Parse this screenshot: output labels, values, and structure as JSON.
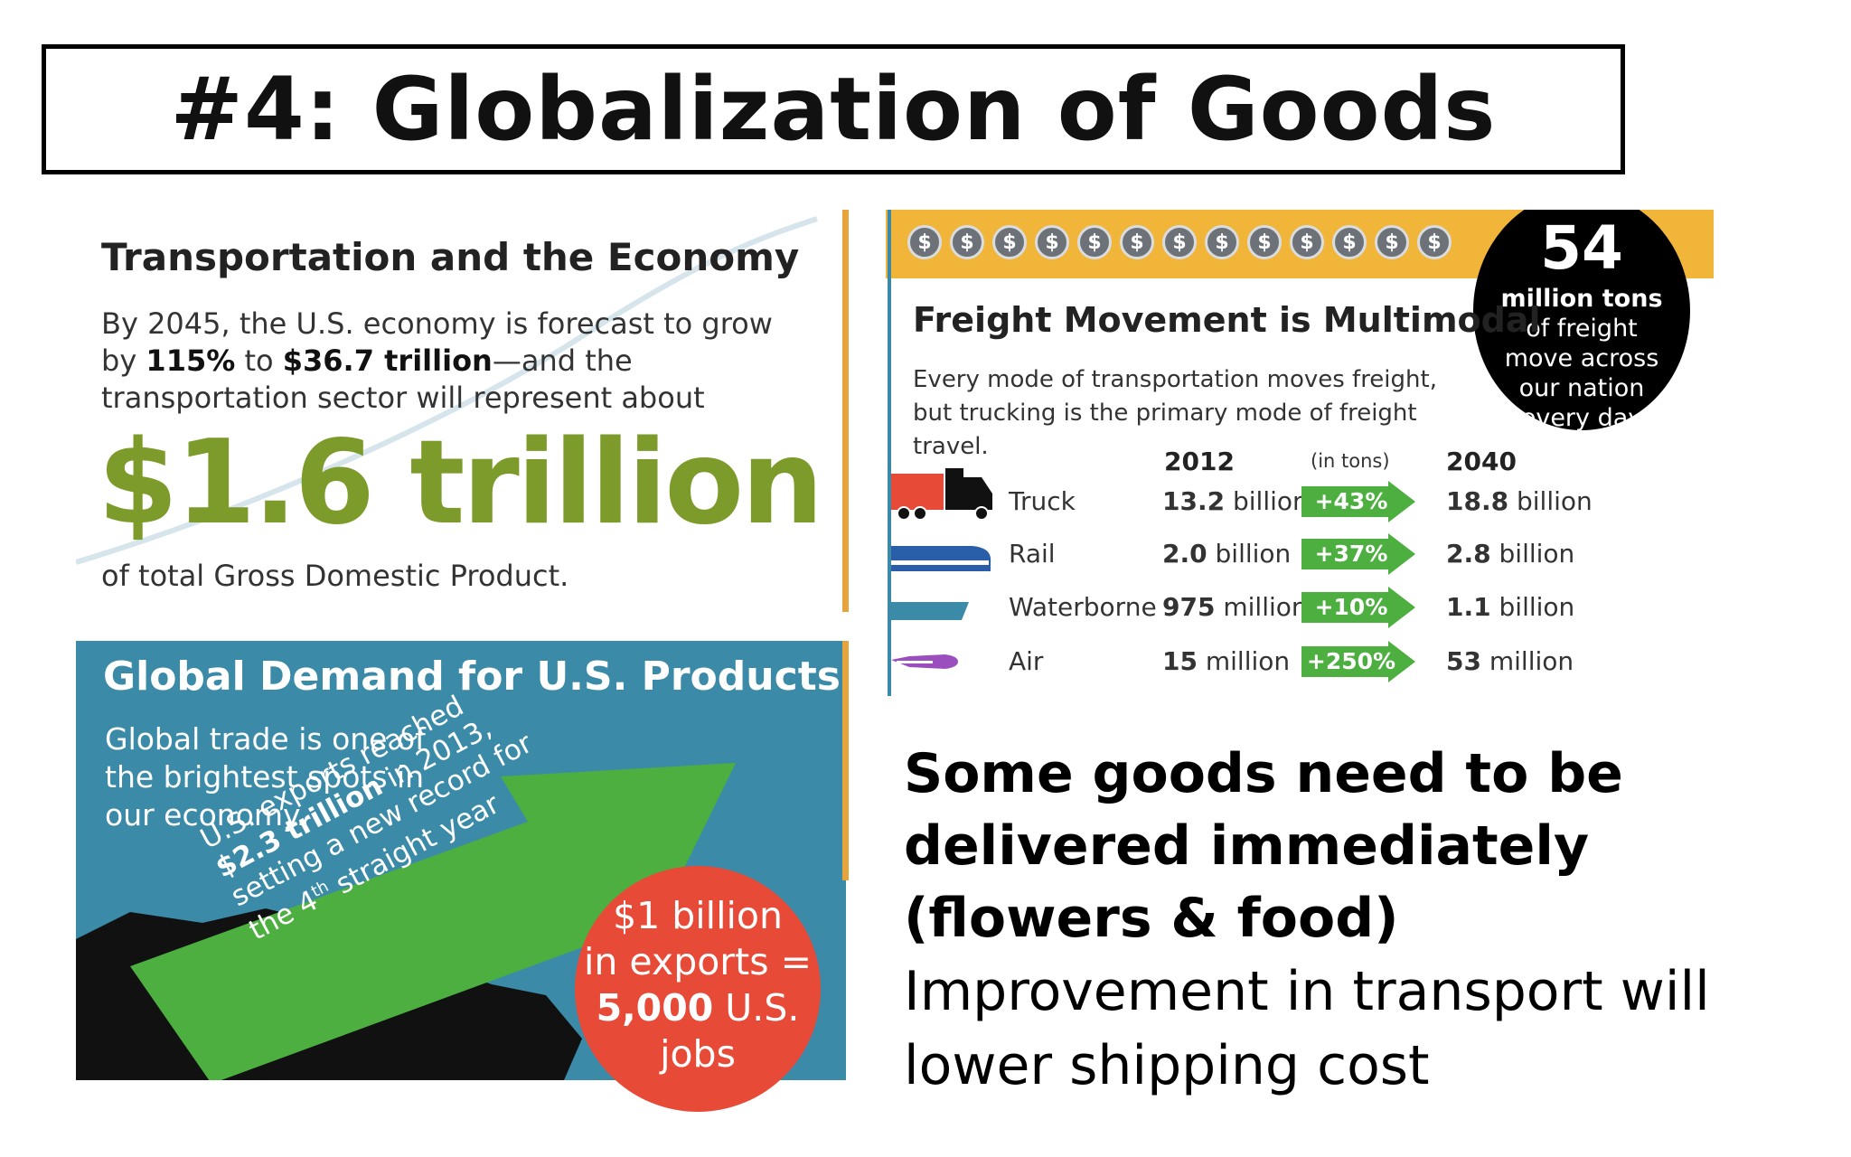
{
  "title": "#4: Globalization of Goods",
  "economy": {
    "heading": "Transportation and the Economy",
    "body_pre": "By 2045, the U.S. economy is forecast to grow by ",
    "body_pct": "115%",
    "body_mid": " to ",
    "body_amt": "$36.7 trillion",
    "body_post": "—and the transportation sector will represent about",
    "big_value": "$1.6 trillion",
    "footer": "of total Gross Domestic Product.",
    "accent_color": "#7c9b2b"
  },
  "global": {
    "heading": "Global Demand for U.S. Products",
    "body": "Global trade is one of the brightest spots in our economy.",
    "arrow_line1": "U.S. exports reached",
    "arrow_line2_bold": "$2.3 trillion",
    "arrow_line2_rest": " in 2013,",
    "arrow_line3": "setting a new record for",
    "arrow_line4_pre": "the 4",
    "arrow_line4_sup": "th",
    "arrow_line4_post": " straight year",
    "circle_line1": "$1 billion",
    "circle_line2": "in exports =",
    "circle_line3_bold": "5,000",
    "circle_line3_rest": " U.S.",
    "circle_line4": "jobs",
    "bg_color": "#3b8aa8",
    "arrow_color": "#4caf3f",
    "circle_color": "#e84a38"
  },
  "freight": {
    "coin_symbol": "$",
    "circle_number": "54",
    "circle_line1": "million tons",
    "circle_line2": "of freight",
    "circle_line3": "move across",
    "circle_line4": "our nation",
    "circle_line5": "every day",
    "heading": "Freight Movement is Multimodal",
    "body": "Every mode of transportation moves freight, but trucking is the primary mode of freight travel.",
    "col_2012": "2012",
    "col_units": "(in tons)",
    "col_2040": "2040",
    "rows": [
      {
        "mode": "Truck",
        "icon": "truck-icon",
        "v2012_num": "13.2",
        "v2012_unit": " billion",
        "change": "+43%",
        "v2040_num": "18.8",
        "v2040_unit": " billion"
      },
      {
        "mode": "Rail",
        "icon": "train-icon",
        "v2012_num": "2.0",
        "v2012_unit": " billion",
        "change": "+37%",
        "v2040_num": "2.8",
        "v2040_unit": " billion"
      },
      {
        "mode": "Waterborne",
        "icon": "ship-icon",
        "v2012_num": "975",
        "v2012_unit": " million",
        "change": "+10%",
        "v2040_num": "1.1",
        "v2040_unit": " billion"
      },
      {
        "mode": "Air",
        "icon": "plane-icon",
        "v2012_num": "15",
        "v2012_unit": " million",
        "change": "+250%",
        "v2040_num": "53",
        "v2040_unit": " million"
      }
    ],
    "band_color": "#f1b53a"
  },
  "right_text": {
    "bold": "Some goods need to be delivered immediately (flowers & food)",
    "normal": "Improvement in transport will lower shipping cost"
  }
}
